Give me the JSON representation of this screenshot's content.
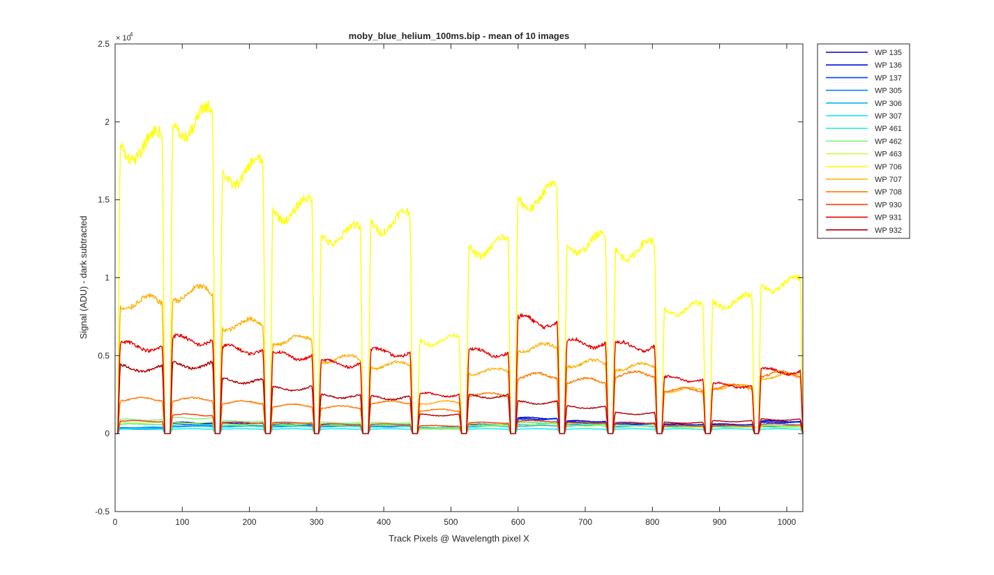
{
  "chart_data": {
    "type": "line",
    "title": "moby_blue_helium_100ms.bip - mean of 10 images",
    "xlabel": "Track Pixels @ Wavelength pixel X",
    "ylabel": "Signal (ADU) - dark subtracted",
    "y_exponent_label": "× 10",
    "y_exponent_power": "4",
    "xlim": [
      0,
      1024
    ],
    "ylim": [
      -0.5,
      2.5
    ],
    "y_scale_factor": 10000,
    "x_ticks": [
      0,
      100,
      200,
      300,
      400,
      500,
      600,
      700,
      800,
      900,
      1000
    ],
    "x_tick_labels": [
      "0",
      "100",
      "200",
      "300",
      "400",
      "500",
      "600",
      "700",
      "800",
      "900",
      "1000"
    ],
    "y_ticks": [
      -0.5,
      0,
      0.5,
      1,
      1.5,
      2,
      2.5
    ],
    "y_tick_labels": [
      "-0.5",
      "0",
      "0.5",
      "1",
      "1.5",
      "2",
      "2.5"
    ],
    "grid": false,
    "legend_position": "outside-right-top",
    "segment_bounds": [
      [
        4,
        74
      ],
      [
        82,
        149
      ],
      [
        156,
        224
      ],
      [
        231,
        297
      ],
      [
        303,
        369
      ],
      [
        377,
        443
      ],
      [
        450,
        516
      ],
      [
        523,
        589
      ],
      [
        596,
        662
      ],
      [
        669,
        734
      ],
      [
        741,
        807
      ],
      [
        814,
        879
      ],
      [
        886,
        952
      ],
      [
        958,
        1024
      ]
    ],
    "series": [
      {
        "name": "WP 135",
        "color": "#0000bf",
        "levels": [
          0.03,
          0.07,
          0.07,
          0.06,
          0.06,
          0.05,
          0.03,
          0.06,
          0.1,
          0.08,
          0.07,
          0.06,
          0.06,
          0.08
        ]
      },
      {
        "name": "WP 136",
        "color": "#0010df",
        "levels": [
          0.03,
          0.065,
          0.065,
          0.055,
          0.055,
          0.05,
          0.03,
          0.055,
          0.095,
          0.075,
          0.065,
          0.055,
          0.055,
          0.075
        ]
      },
      {
        "name": "WP 137",
        "color": "#0040ff",
        "levels": [
          0.03,
          0.06,
          0.06,
          0.05,
          0.05,
          0.045,
          0.03,
          0.05,
          0.09,
          0.07,
          0.06,
          0.05,
          0.05,
          0.07
        ]
      },
      {
        "name": "WP 305",
        "color": "#0080ff",
        "levels": [
          0.04,
          0.05,
          0.05,
          0.05,
          0.05,
          0.05,
          0.04,
          0.05,
          0.06,
          0.06,
          0.05,
          0.05,
          0.05,
          0.05
        ]
      },
      {
        "name": "WP 306",
        "color": "#00b4f0",
        "levels": [
          0.035,
          0.045,
          0.045,
          0.045,
          0.045,
          0.045,
          0.035,
          0.045,
          0.05,
          0.05,
          0.045,
          0.045,
          0.045,
          0.045
        ]
      },
      {
        "name": "WP 307",
        "color": "#00e8f0",
        "levels": [
          0.03,
          0.03,
          0.03,
          0.03,
          0.03,
          0.03,
          0.03,
          0.03,
          0.03,
          0.03,
          0.03,
          0.03,
          0.03,
          0.03
        ]
      },
      {
        "name": "WP 461",
        "color": "#30f0c0",
        "levels": [
          0.06,
          0.06,
          0.05,
          0.05,
          0.05,
          0.05,
          0.03,
          0.05,
          0.07,
          0.06,
          0.05,
          0.05,
          0.05,
          0.05
        ]
      },
      {
        "name": "WP 462",
        "color": "#80f080",
        "levels": [
          0.09,
          0.1,
          0.08,
          0.07,
          0.07,
          0.07,
          0.04,
          0.06,
          0.07,
          0.06,
          0.05,
          0.05,
          0.05,
          0.05
        ]
      },
      {
        "name": "WP 463",
        "color": "#c0ff40",
        "levels": [
          0.07,
          0.07,
          0.06,
          0.06,
          0.06,
          0.06,
          0.03,
          0.05,
          0.06,
          0.05,
          0.05,
          0.04,
          0.04,
          0.04
        ]
      },
      {
        "name": "WP 706",
        "color": "#ffff00",
        "levels": [
          1.85,
          2.0,
          1.68,
          1.44,
          1.28,
          1.36,
          0.6,
          1.2,
          1.52,
          1.22,
          1.18,
          0.8,
          0.85,
          0.96
        ]
      },
      {
        "name": "WP 707",
        "color": "#ffb000",
        "levels": [
          0.84,
          0.9,
          0.7,
          0.6,
          0.48,
          0.44,
          0.2,
          0.4,
          0.55,
          0.45,
          0.43,
          0.28,
          0.3,
          0.37
        ]
      },
      {
        "name": "WP 708",
        "color": "#ff7800",
        "levels": [
          0.22,
          0.22,
          0.2,
          0.18,
          0.17,
          0.2,
          0.15,
          0.25,
          0.37,
          0.34,
          0.38,
          0.28,
          0.3,
          0.38
        ]
      },
      {
        "name": "WP 930",
        "color": "#ff3800",
        "levels": [
          0.08,
          0.12,
          0.07,
          0.07,
          0.06,
          0.06,
          0.05,
          0.07,
          0.08,
          0.07,
          0.07,
          0.05,
          0.05,
          0.06
        ]
      },
      {
        "name": "WP 931",
        "color": "#e80000",
        "levels": [
          0.56,
          0.6,
          0.54,
          0.5,
          0.45,
          0.52,
          0.25,
          0.52,
          0.72,
          0.58,
          0.56,
          0.35,
          0.31,
          0.4
        ]
      },
      {
        "name": "WP 932",
        "color": "#b00000",
        "levels": [
          0.42,
          0.44,
          0.34,
          0.29,
          0.24,
          0.23,
          0.12,
          0.24,
          0.2,
          0.17,
          0.13,
          0.07,
          0.08,
          0.09
        ]
      }
    ]
  }
}
